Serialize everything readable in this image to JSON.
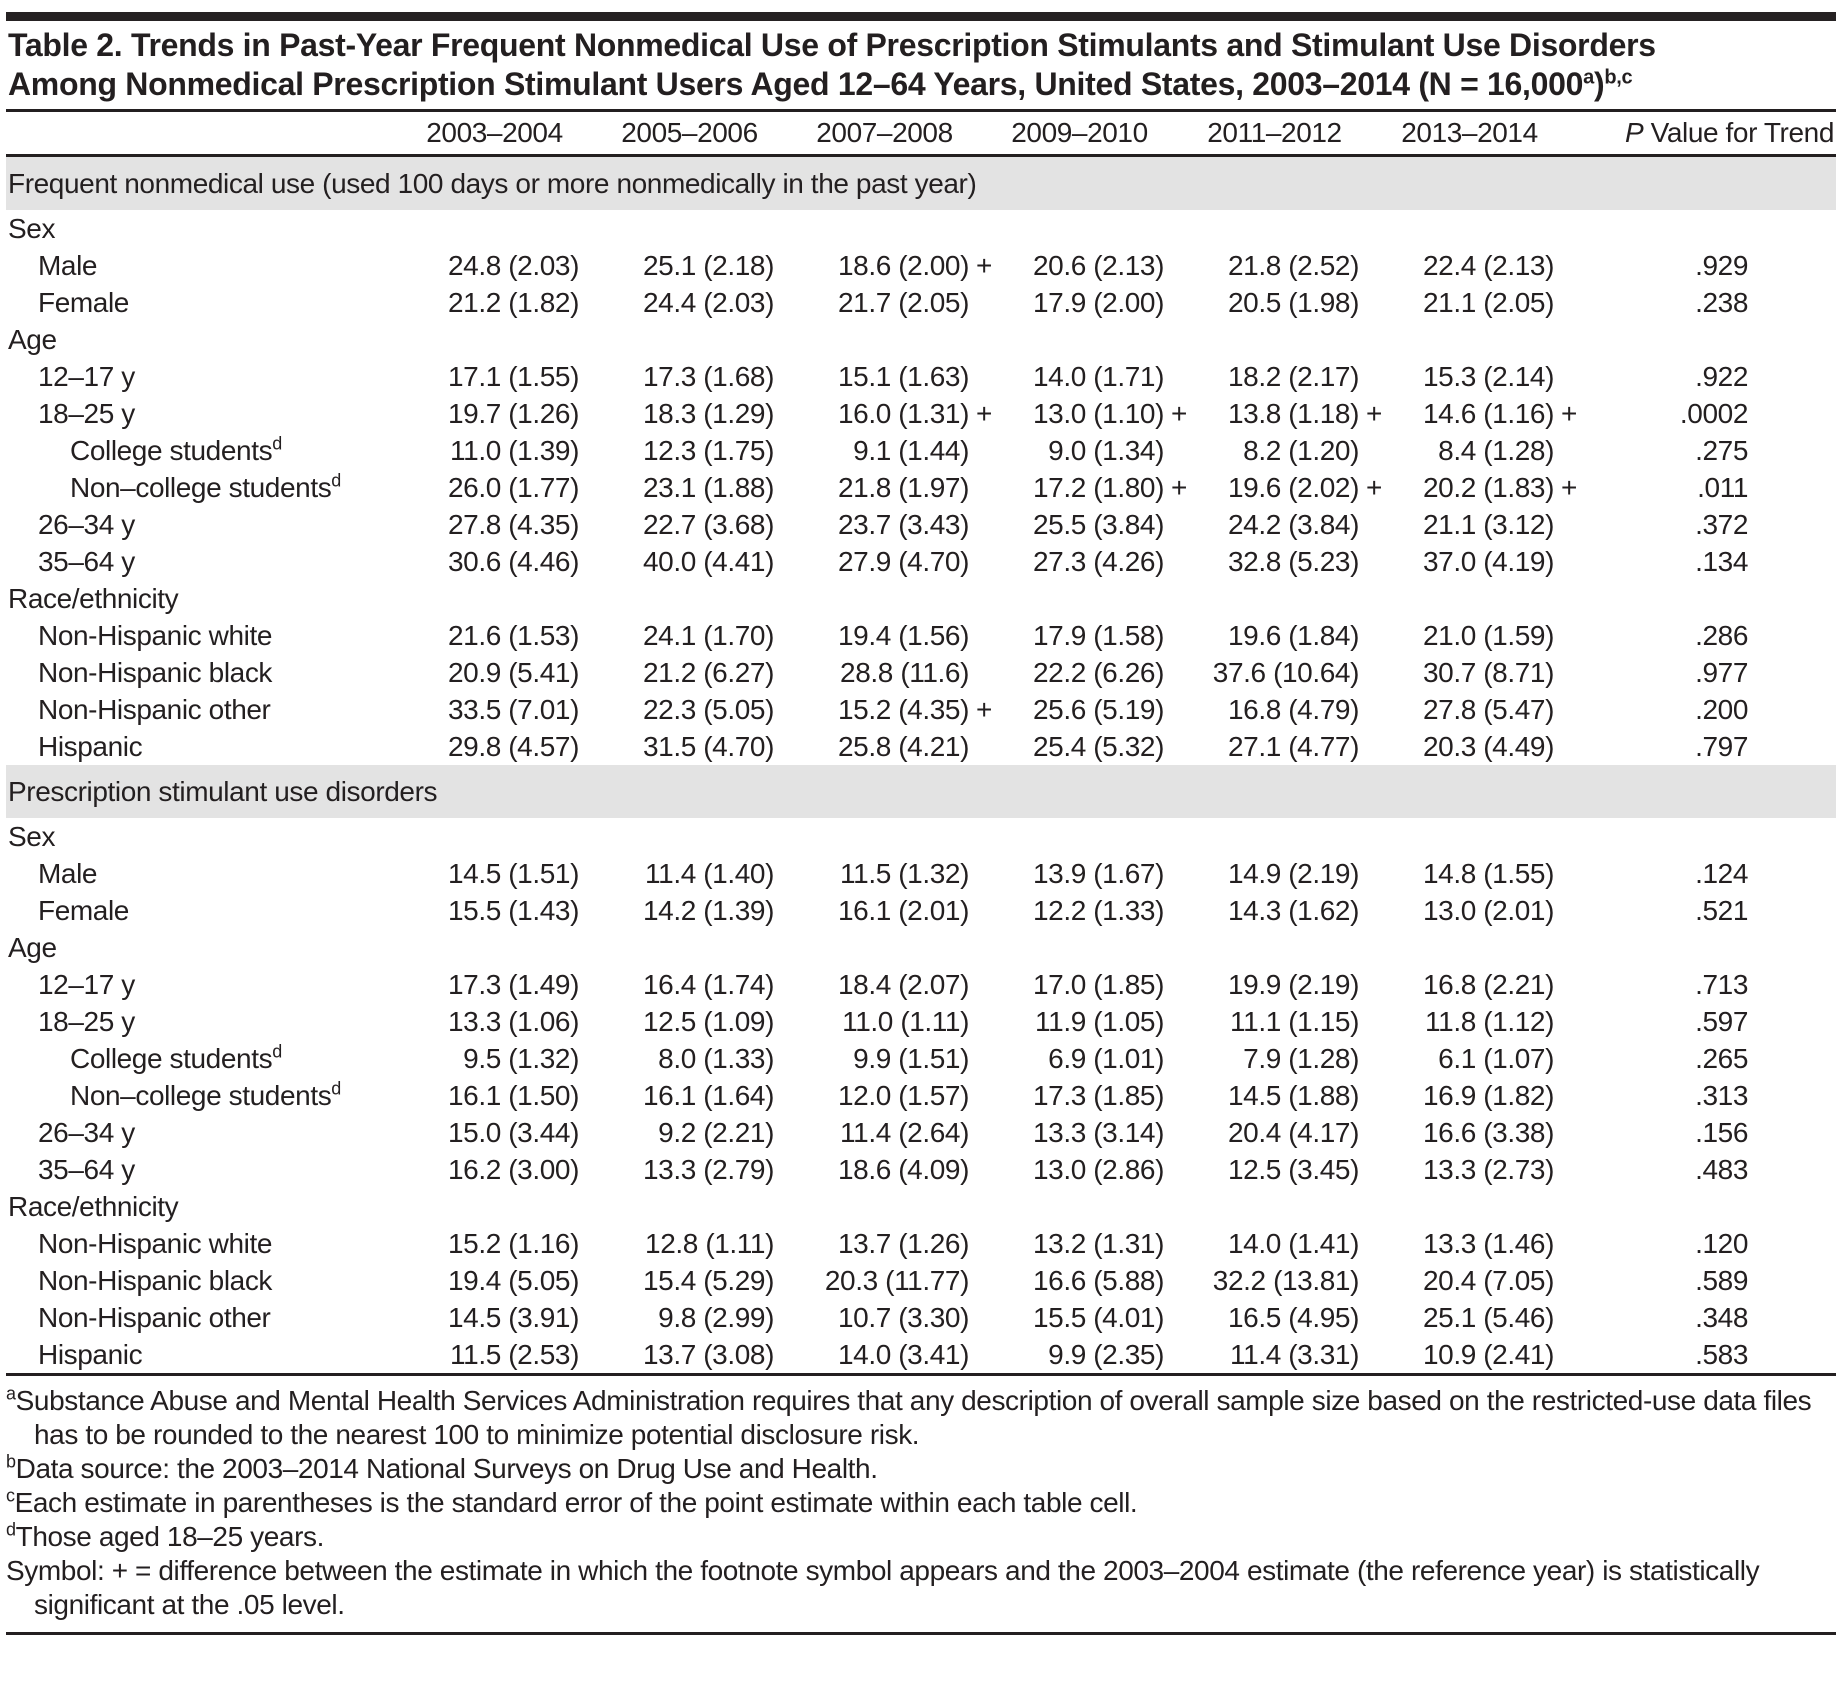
{
  "colors": {
    "text": "#231f20",
    "rule": "#231f20",
    "section_band": "#e3e3e3",
    "top_bar": "#262223"
  },
  "title": {
    "line1": "Table 2. Trends in Past-Year Frequent Nonmedical Use of Prescription Stimulants and Stimulant Use Disorders",
    "line2_pre": "Among Nonmedical Prescription Stimulant Users Aged 12–64 Years, United States, 2003–2014 (N = 16,000",
    "sup_a": "a",
    "close_paren": ")",
    "sup_bc": "b,c"
  },
  "columns": [
    "2003–2004",
    "2005–2006",
    "2007–2008",
    "2009–2010",
    "2011–2012",
    "2013–2014"
  ],
  "p_column": {
    "italic": "P",
    "rest": " Value for Trend"
  },
  "sections": [
    {
      "header": "Frequent nonmedical use (used 100 days or more nonmedically in the past year)",
      "rows": [
        {
          "label": "Sex",
          "indent": 1,
          "group": true
        },
        {
          "label": "Male",
          "indent": 2,
          "values": [
            "24.8 (2.03)",
            "25.1 (2.18)",
            "18.6 (2.00)+",
            "20.6 (2.13)",
            "21.8 (2.52)",
            "22.4 (2.13)"
          ],
          "p": ".929"
        },
        {
          "label": "Female",
          "indent": 2,
          "values": [
            "21.2 (1.82)",
            "24.4 (2.03)",
            "21.7 (2.05)",
            "17.9 (2.00)",
            "20.5 (1.98)",
            "21.1 (2.05)"
          ],
          "p": ".238"
        },
        {
          "label": "Age",
          "indent": 1,
          "group": true
        },
        {
          "label": "12–17 y",
          "indent": 2,
          "values": [
            "17.1 (1.55)",
            "17.3 (1.68)",
            "15.1 (1.63)",
            "14.0 (1.71)",
            "18.2 (2.17)",
            "15.3 (2.14)"
          ],
          "p": ".922"
        },
        {
          "label": "18–25 y",
          "indent": 2,
          "values": [
            "19.7 (1.26)",
            "18.3 (1.29)",
            "16.0 (1.31)+",
            "13.0 (1.10)+",
            "13.8 (1.18)+",
            "14.6 (1.16)+"
          ],
          "p": ".0002"
        },
        {
          "label": "College students",
          "sup": "d",
          "indent": 3,
          "values": [
            "11.0 (1.39)",
            "12.3 (1.75)",
            "9.1 (1.44)",
            "9.0 (1.34)",
            "8.2 (1.20)",
            "8.4 (1.28)"
          ],
          "p": ".275"
        },
        {
          "label": "Non–college students",
          "sup": "d",
          "indent": 3,
          "values": [
            "26.0 (1.77)",
            "23.1 (1.88)",
            "21.8 (1.97)",
            "17.2 (1.80)+",
            "19.6 (2.02)+",
            "20.2 (1.83)+"
          ],
          "p": ".011"
        },
        {
          "label": "26–34 y",
          "indent": 2,
          "values": [
            "27.8 (4.35)",
            "22.7 (3.68)",
            "23.7 (3.43)",
            "25.5 (3.84)",
            "24.2 (3.84)",
            "21.1 (3.12)"
          ],
          "p": ".372"
        },
        {
          "label": "35–64 y",
          "indent": 2,
          "values": [
            "30.6 (4.46)",
            "40.0 (4.41)",
            "27.9 (4.70)",
            "27.3 (4.26)",
            "32.8 (5.23)",
            "37.0 (4.19)"
          ],
          "p": ".134"
        },
        {
          "label": "Race/ethnicity",
          "indent": 1,
          "group": true
        },
        {
          "label": "Non-Hispanic white",
          "indent": 2,
          "values": [
            "21.6 (1.53)",
            "24.1 (1.70)",
            "19.4 (1.56)",
            "17.9 (1.58)",
            "19.6 (1.84)",
            "21.0 (1.59)"
          ],
          "p": ".286"
        },
        {
          "label": "Non-Hispanic black",
          "indent": 2,
          "values": [
            "20.9 (5.41)",
            "21.2 (6.27)",
            "28.8 (11.6)",
            "22.2 (6.26)",
            "37.6 (10.64)",
            "30.7 (8.71)"
          ],
          "p": ".977"
        },
        {
          "label": "Non-Hispanic other",
          "indent": 2,
          "values": [
            "33.5 (7.01)",
            "22.3 (5.05)",
            "15.2 (4.35)+",
            "25.6 (5.19)",
            "16.8 (4.79)",
            "27.8 (5.47)"
          ],
          "p": ".200"
        },
        {
          "label": "Hispanic",
          "indent": 2,
          "values": [
            "29.8 (4.57)",
            "31.5 (4.70)",
            "25.8 (4.21)",
            "25.4 (5.32)",
            "27.1 (4.77)",
            "20.3 (4.49)"
          ],
          "p": ".797"
        }
      ]
    },
    {
      "header": "Prescription stimulant use disorders",
      "rows": [
        {
          "label": "Sex",
          "indent": 1,
          "group": true
        },
        {
          "label": "Male",
          "indent": 2,
          "values": [
            "14.5 (1.51)",
            "11.4 (1.40)",
            "11.5 (1.32)",
            "13.9 (1.67)",
            "14.9 (2.19)",
            "14.8 (1.55)"
          ],
          "p": ".124"
        },
        {
          "label": "Female",
          "indent": 2,
          "values": [
            "15.5 (1.43)",
            "14.2 (1.39)",
            "16.1 (2.01)",
            "12.2 (1.33)",
            "14.3 (1.62)",
            "13.0 (2.01)"
          ],
          "p": ".521"
        },
        {
          "label": "Age",
          "indent": 1,
          "group": true
        },
        {
          "label": "12–17 y",
          "indent": 2,
          "values": [
            "17.3 (1.49)",
            "16.4 (1.74)",
            "18.4 (2.07)",
            "17.0 (1.85)",
            "19.9 (2.19)",
            "16.8 (2.21)"
          ],
          "p": ".713"
        },
        {
          "label": "18–25 y",
          "indent": 2,
          "values": [
            "13.3 (1.06)",
            "12.5 (1.09)",
            "11.0 (1.11)",
            "11.9 (1.05)",
            "11.1 (1.15)",
            "11.8 (1.12)"
          ],
          "p": ".597"
        },
        {
          "label": "College students",
          "sup": "d",
          "indent": 3,
          "values": [
            "9.5 (1.32)",
            "8.0 (1.33)",
            "9.9 (1.51)",
            "6.9 (1.01)",
            "7.9 (1.28)",
            "6.1 (1.07)"
          ],
          "p": ".265"
        },
        {
          "label": "Non–college students",
          "sup": "d",
          "indent": 3,
          "values": [
            "16.1 (1.50)",
            "16.1 (1.64)",
            "12.0 (1.57)",
            "17.3 (1.85)",
            "14.5 (1.88)",
            "16.9 (1.82)"
          ],
          "p": ".313"
        },
        {
          "label": "26–34 y",
          "indent": 2,
          "values": [
            "15.0 (3.44)",
            "9.2 (2.21)",
            "11.4 (2.64)",
            "13.3 (3.14)",
            "20.4 (4.17)",
            "16.6 (3.38)"
          ],
          "p": ".156"
        },
        {
          "label": "35–64 y",
          "indent": 2,
          "values": [
            "16.2 (3.00)",
            "13.3 (2.79)",
            "18.6 (4.09)",
            "13.0 (2.86)",
            "12.5 (3.45)",
            "13.3 (2.73)"
          ],
          "p": ".483"
        },
        {
          "label": "Race/ethnicity",
          "indent": 1,
          "group": true
        },
        {
          "label": "Non-Hispanic white",
          "indent": 2,
          "values": [
            "15.2 (1.16)",
            "12.8 (1.11)",
            "13.7 (1.26)",
            "13.2 (1.31)",
            "14.0 (1.41)",
            "13.3 (1.46)"
          ],
          "p": ".120"
        },
        {
          "label": "Non-Hispanic black",
          "indent": 2,
          "values": [
            "19.4 (5.05)",
            "15.4 (5.29)",
            "20.3 (11.77)",
            "16.6 (5.88)",
            "32.2 (13.81)",
            "20.4 (7.05)"
          ],
          "p": ".589"
        },
        {
          "label": "Non-Hispanic other",
          "indent": 2,
          "values": [
            "14.5 (3.91)",
            "9.8 (2.99)",
            "10.7 (3.30)",
            "15.5 (4.01)",
            "16.5 (4.95)",
            "25.1 (5.46)"
          ],
          "p": ".348"
        },
        {
          "label": "Hispanic",
          "indent": 2,
          "values": [
            "11.5 (2.53)",
            "13.7 (3.08)",
            "14.0 (3.41)",
            "9.9 (2.35)",
            "11.4 (3.31)",
            "10.9 (2.41)"
          ],
          "p": ".583"
        }
      ]
    }
  ],
  "footnotes": [
    {
      "marker": "a",
      "text": "Substance Abuse and Mental Health Services Administration requires that any description of overall sample size based on the restricted-use data files has to be rounded to the nearest 100 to minimize potential disclosure risk."
    },
    {
      "marker": "b",
      "text": "Data source: the 2003–2014 National Surveys on Drug Use and Health."
    },
    {
      "marker": "c",
      "text": "Each estimate in parentheses is the standard error of the point estimate within each table cell."
    },
    {
      "marker": "d",
      "text": "Those aged 18–25 years."
    },
    {
      "marker": "",
      "text": "Symbol: + = difference between the estimate in which the footnote symbol appears and the 2003–2004 estimate (the reference year) is statistically significant at the .05 level."
    }
  ]
}
